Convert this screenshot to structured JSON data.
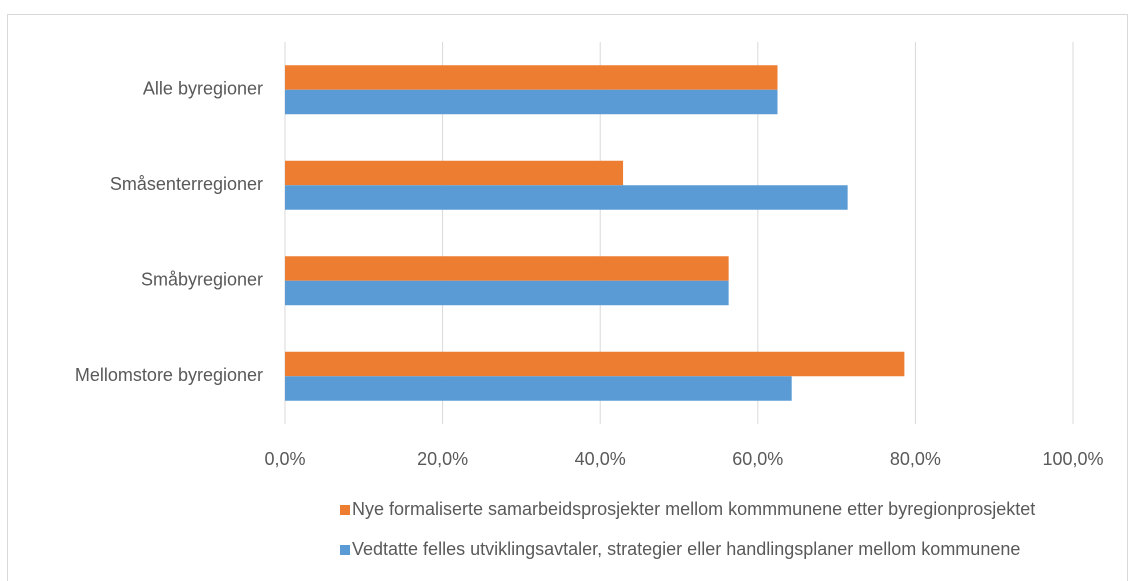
{
  "chart_data": {
    "type": "bar",
    "orientation": "horizontal",
    "categories": [
      "Alle byregioner",
      "Småsenterregioner",
      "Småbyregioner",
      "Mellomstore byregioner"
    ],
    "series": [
      {
        "name": "Nye formaliserte samarbeidsprosjekter mellom kommmunene etter byregionprosjektet",
        "color": "#ed7d31",
        "values": [
          62.5,
          42.9,
          56.3,
          78.6
        ]
      },
      {
        "name": "Vedtatte felles utviklingsavtaler, strategier eller handlingsplaner mellom kommunene",
        "color": "#5b9bd5",
        "values": [
          62.5,
          71.4,
          56.3,
          64.3
        ]
      }
    ],
    "xlim": [
      0,
      100
    ],
    "xticks": [
      {
        "value": 0,
        "label": "0,0%"
      },
      {
        "value": 20,
        "label": "20,0%"
      },
      {
        "value": 40,
        "label": "40,0%"
      },
      {
        "value": 60,
        "label": "60,0%"
      },
      {
        "value": 80,
        "label": "80,0%"
      },
      {
        "value": 100,
        "label": "100,0%"
      }
    ],
    "grid": true,
    "legend": "bottom"
  }
}
